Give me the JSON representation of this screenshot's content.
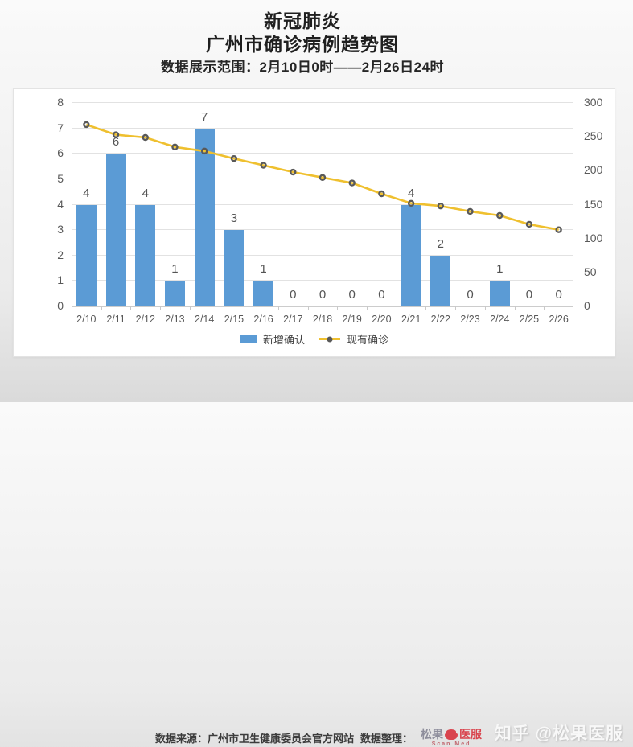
{
  "header": {
    "title_line1": "新冠肺炎",
    "title_line2": "广州市确诊病例趋势图",
    "title_line3": "数据展示范围：2月10日0时——2月26日24时"
  },
  "chart_data": {
    "type": "bar",
    "subtype": "bar+line combo, dual y-axis",
    "categories": [
      "2/10",
      "2/11",
      "2/12",
      "2/13",
      "2/14",
      "2/15",
      "2/16",
      "2/17",
      "2/18",
      "2/19",
      "2/20",
      "2/21",
      "2/22",
      "2/23",
      "2/24",
      "2/25",
      "2/26"
    ],
    "series": [
      {
        "name": "新增确认",
        "type": "bar",
        "axis": "left",
        "color": "#5b9bd5",
        "values": [
          4,
          6,
          4,
          1,
          7,
          3,
          1,
          0,
          0,
          0,
          0,
          4,
          2,
          0,
          1,
          0,
          0
        ]
      },
      {
        "name": "现有确诊",
        "type": "line",
        "axis": "right",
        "color": "#efc02f",
        "marker_color": "#595959",
        "values": [
          268,
          253,
          249,
          235,
          229,
          218,
          208,
          198,
          190,
          182,
          166,
          152,
          148,
          140,
          134,
          121,
          113
        ]
      }
    ],
    "left_axis": {
      "min": 0,
      "max": 8,
      "step": 1,
      "ticks": [
        0,
        1,
        2,
        3,
        4,
        5,
        6,
        7,
        8
      ]
    },
    "right_axis": {
      "min": 0,
      "max": 300,
      "step": 50,
      "ticks": [
        0,
        50,
        100,
        150,
        200,
        250,
        300
      ]
    },
    "grid": true,
    "legend_position": "bottom",
    "data_labels": "shown above bars"
  },
  "footer": {
    "source_label": "数据来源：广州市卫生健康委员会官方网站",
    "editor_label": "数据整理：",
    "logo": {
      "left": "松果",
      "right": "医服",
      "subtext": "Scan Med"
    },
    "watermark": "知乎 @松果医服"
  },
  "colors": {
    "bar": "#5b9bd5",
    "line": "#efc02f",
    "marker": "#595959",
    "grid": "#e2e2e2",
    "axis_text": "#595959",
    "logo_red": "#d9444e"
  }
}
